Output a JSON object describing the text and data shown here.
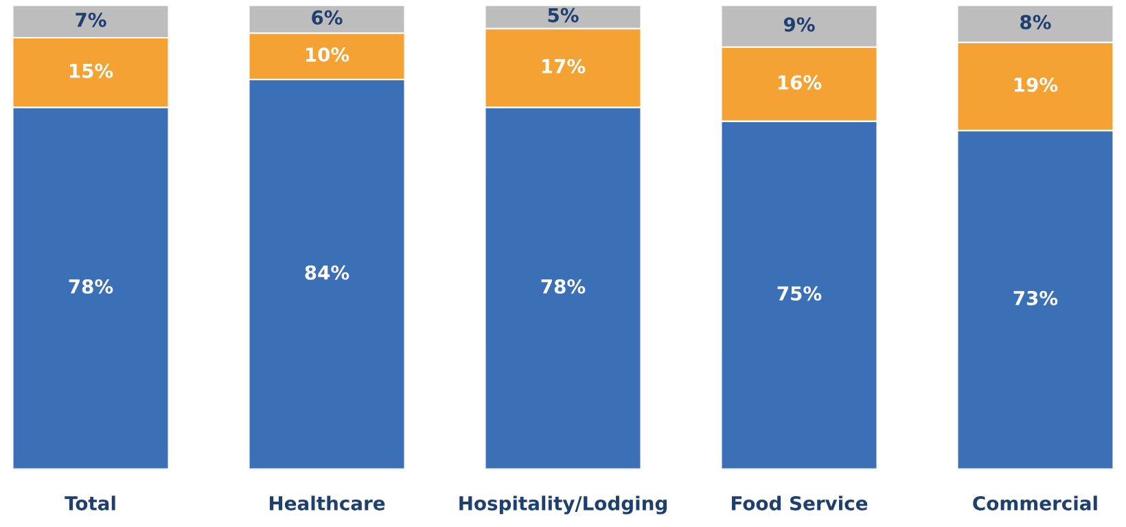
{
  "chart_data": {
    "type": "bar",
    "stacked": true,
    "legend": false,
    "grid": false,
    "categories": [
      "Total",
      "Healthcare",
      "Hospitality/Lodging",
      "Food Service",
      "Commercial"
    ],
    "series": [
      {
        "color": "#3b6fb6",
        "values": [
          78,
          84,
          78,
          75,
          73
        ],
        "value_labels": [
          "78%",
          "84%",
          "78%",
          "75%",
          "73%"
        ]
      },
      {
        "color": "#f3a233",
        "values": [
          15,
          10,
          17,
          16,
          19
        ],
        "value_labels": [
          "15%",
          "10%",
          "17%",
          "16%",
          "19%"
        ]
      },
      {
        "color": "#bdbdbd",
        "values": [
          7,
          6,
          5,
          9,
          8
        ],
        "value_labels": [
          "7%",
          "6%",
          "5%",
          "9%",
          "8%"
        ]
      }
    ]
  }
}
